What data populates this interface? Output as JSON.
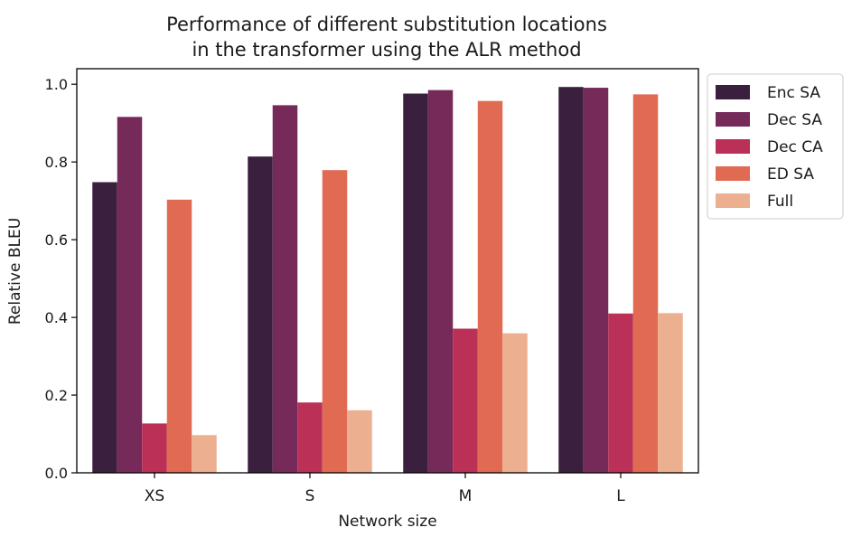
{
  "chart_data": {
    "type": "bar",
    "title_lines": [
      "Performance of different substitution locations",
      "in the transformer using the ALR method"
    ],
    "xlabel": "Network size",
    "ylabel": "Relative BLEU",
    "categories": [
      "XS",
      "S",
      "M",
      "L"
    ],
    "ylim": [
      0,
      1.04
    ],
    "yticks": [
      "0.0",
      "0.2",
      "0.4",
      "0.6",
      "0.8",
      "1.0"
    ],
    "legend_position": "outside-right-top",
    "series": [
      {
        "name": "Enc SA",
        "color": "#3b1f3e",
        "values": [
          0.748,
          0.814,
          0.976,
          0.993
        ]
      },
      {
        "name": "Dec SA",
        "color": "#762a5a",
        "values": [
          0.916,
          0.946,
          0.985,
          0.991
        ]
      },
      {
        "name": "Dec CA",
        "color": "#bb3056",
        "values": [
          0.127,
          0.181,
          0.371,
          0.41
        ]
      },
      {
        "name": "ED SA",
        "color": "#e06b52",
        "values": [
          0.703,
          0.779,
          0.957,
          0.974
        ]
      },
      {
        "name": "Full",
        "color": "#ecb090",
        "values": [
          0.097,
          0.161,
          0.359,
          0.411
        ]
      }
    ]
  }
}
